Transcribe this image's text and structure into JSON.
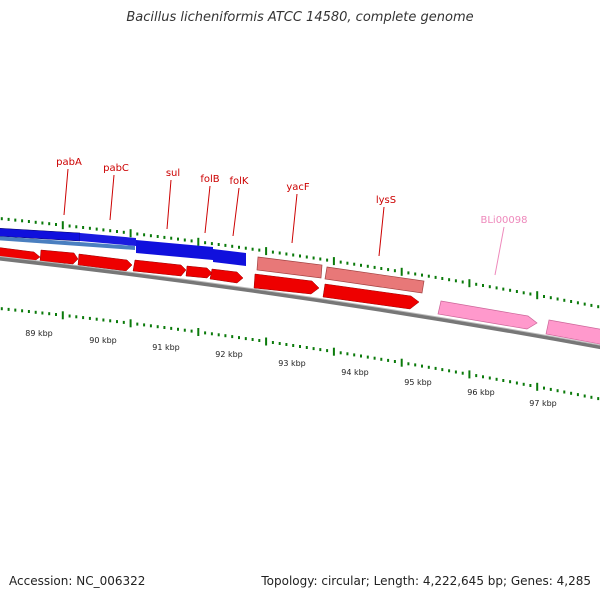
{
  "title": "Bacillus licheniformis ATCC 14580, complete genome",
  "footer": {
    "accession": "Accession: NC_006322",
    "summary": "Topology: circular; Length: 4,222,645 bp; Genes: 4,285"
  },
  "colors": {
    "tick": "#0a7a0a",
    "forward_cds": "#ee0000",
    "reverse_cds": "#1010dd",
    "pseudo_light": "#e87878",
    "pink_gene": "#ff99cc",
    "label_red": "#cc0000",
    "label_pink": "#ee88bb",
    "backbone": "#888888"
  },
  "gene_labels": [
    {
      "name": "pabA",
      "color": "label_red"
    },
    {
      "name": "pabC",
      "color": "label_red"
    },
    {
      "name": "sul",
      "color": "label_red"
    },
    {
      "name": "folB",
      "color": "label_red"
    },
    {
      "name": "folK",
      "color": "label_red"
    },
    {
      "name": "yacF",
      "color": "label_red"
    },
    {
      "name": "lysS",
      "color": "label_red"
    },
    {
      "name": "BLi00098",
      "color": "label_pink"
    }
  ],
  "kbp_labels": [
    "89 kbp",
    "90 kbp",
    "91 kbp",
    "92 kbp",
    "93 kbp",
    "94 kbp",
    "95 kbp",
    "96 kbp",
    "97 kbp"
  ]
}
